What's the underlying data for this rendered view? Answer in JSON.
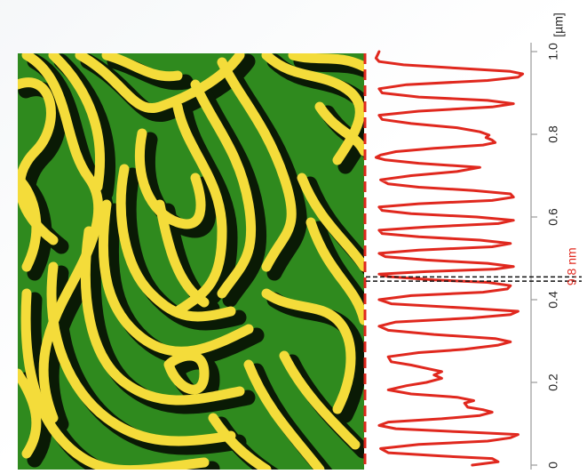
{
  "chart_data": {
    "type": "line",
    "title": "",
    "xlabel": "",
    "unit_label": "[µm]",
    "annotation": "9.8 nm",
    "xlim": [
      0,
      1.0
    ],
    "ticks": [
      {
        "value": 0,
        "label": "0"
      },
      {
        "value": 0.2,
        "label": "0.2"
      },
      {
        "value": 0.4,
        "label": "0.4"
      },
      {
        "value": 0.6,
        "label": "0.6"
      },
      {
        "value": 0.8,
        "label": "0.8"
      },
      {
        "value": 1.0,
        "label": "1.0"
      }
    ],
    "profile": [
      [
        0.0,
        0.65
      ],
      [
        0.008,
        0.82
      ],
      [
        0.016,
        0.78
      ],
      [
        0.022,
        0.45
      ],
      [
        0.03,
        0.1
      ],
      [
        0.04,
        0.05
      ],
      [
        0.05,
        0.3
      ],
      [
        0.058,
        0.75
      ],
      [
        0.066,
        0.9
      ],
      [
        0.074,
        0.95
      ],
      [
        0.08,
        0.6
      ],
      [
        0.088,
        0.15
      ],
      [
        0.096,
        0.04
      ],
      [
        0.104,
        0.1
      ],
      [
        0.112,
        0.45
      ],
      [
        0.12,
        0.7
      ],
      [
        0.128,
        0.78
      ],
      [
        0.134,
        0.72
      ],
      [
        0.14,
        0.62
      ],
      [
        0.15,
        0.6
      ],
      [
        0.156,
        0.66
      ],
      [
        0.164,
        0.55
      ],
      [
        0.172,
        0.25
      ],
      [
        0.182,
        0.1
      ],
      [
        0.192,
        0.22
      ],
      [
        0.2,
        0.35
      ],
      [
        0.21,
        0.45
      ],
      [
        0.218,
        0.4
      ],
      [
        0.226,
        0.45
      ],
      [
        0.234,
        0.35
      ],
      [
        0.242,
        0.25
      ],
      [
        0.25,
        0.12
      ],
      [
        0.262,
        0.1
      ],
      [
        0.272,
        0.3
      ],
      [
        0.28,
        0.6
      ],
      [
        0.29,
        0.82
      ],
      [
        0.298,
        0.9
      ],
      [
        0.306,
        0.8
      ],
      [
        0.316,
        0.4
      ],
      [
        0.326,
        0.1
      ],
      [
        0.336,
        0.04
      ],
      [
        0.346,
        0.15
      ],
      [
        0.356,
        0.65
      ],
      [
        0.364,
        0.9
      ],
      [
        0.372,
        0.95
      ],
      [
        0.38,
        0.6
      ],
      [
        0.39,
        0.12
      ],
      [
        0.4,
        0.04
      ],
      [
        0.41,
        0.25
      ],
      [
        0.418,
        0.72
      ],
      [
        0.426,
        0.88
      ],
      [
        0.434,
        0.9
      ],
      [
        0.442,
        0.75
      ],
      [
        0.448,
        0.4
      ],
      [
        0.456,
        0.1
      ],
      [
        0.462,
        0.04
      ],
      [
        0.468,
        0.35
      ],
      [
        0.474,
        0.8
      ],
      [
        0.48,
        0.92
      ],
      [
        0.488,
        0.75
      ],
      [
        0.496,
        0.35
      ],
      [
        0.504,
        0.08
      ],
      [
        0.512,
        0.04
      ],
      [
        0.52,
        0.3
      ],
      [
        0.528,
        0.78
      ],
      [
        0.536,
        0.9
      ],
      [
        0.544,
        0.7
      ],
      [
        0.552,
        0.3
      ],
      [
        0.56,
        0.06
      ],
      [
        0.568,
        0.04
      ],
      [
        0.576,
        0.35
      ],
      [
        0.584,
        0.82
      ],
      [
        0.592,
        0.92
      ],
      [
        0.6,
        0.68
      ],
      [
        0.608,
        0.25
      ],
      [
        0.616,
        0.06
      ],
      [
        0.624,
        0.04
      ],
      [
        0.632,
        0.3
      ],
      [
        0.64,
        0.78
      ],
      [
        0.648,
        0.92
      ],
      [
        0.656,
        0.9
      ],
      [
        0.664,
        0.66
      ],
      [
        0.672,
        0.3
      ],
      [
        0.68,
        0.1
      ],
      [
        0.69,
        0.05
      ],
      [
        0.7,
        0.25
      ],
      [
        0.71,
        0.55
      ],
      [
        0.72,
        0.7
      ],
      [
        0.73,
        0.3
      ],
      [
        0.738,
        0.08
      ],
      [
        0.744,
        0.02
      ],
      [
        0.75,
        0.05
      ],
      [
        0.758,
        0.15
      ],
      [
        0.766,
        0.4
      ],
      [
        0.774,
        0.72
      ],
      [
        0.78,
        0.8
      ],
      [
        0.786,
        0.78
      ],
      [
        0.792,
        0.74
      ],
      [
        0.798,
        0.76
      ],
      [
        0.806,
        0.7
      ],
      [
        0.816,
        0.55
      ],
      [
        0.826,
        0.25
      ],
      [
        0.836,
        0.06
      ],
      [
        0.846,
        0.04
      ],
      [
        0.856,
        0.3
      ],
      [
        0.866,
        0.78
      ],
      [
        0.874,
        0.92
      ],
      [
        0.882,
        0.75
      ],
      [
        0.89,
        0.3
      ],
      [
        0.9,
        0.06
      ],
      [
        0.91,
        0.04
      ],
      [
        0.92,
        0.22
      ],
      [
        0.93,
        0.75
      ],
      [
        0.938,
        0.95
      ],
      [
        0.946,
        0.98
      ],
      [
        0.952,
        0.9
      ],
      [
        0.96,
        0.55
      ],
      [
        0.968,
        0.2
      ],
      [
        0.976,
        0.04
      ],
      [
        0.984,
        0.02
      ],
      [
        0.992,
        0.03
      ],
      [
        1.0,
        0.04
      ]
    ],
    "markers": [
      0.445,
      0.455
    ],
    "colors": {
      "profile": "#e0281e",
      "annotation": "#e0281e",
      "marker": "#111111",
      "axis": "#999999",
      "afm_dark": "#0a1a05",
      "afm_mid": "#2f8a1e",
      "afm_light": "#f4dc3a"
    }
  }
}
